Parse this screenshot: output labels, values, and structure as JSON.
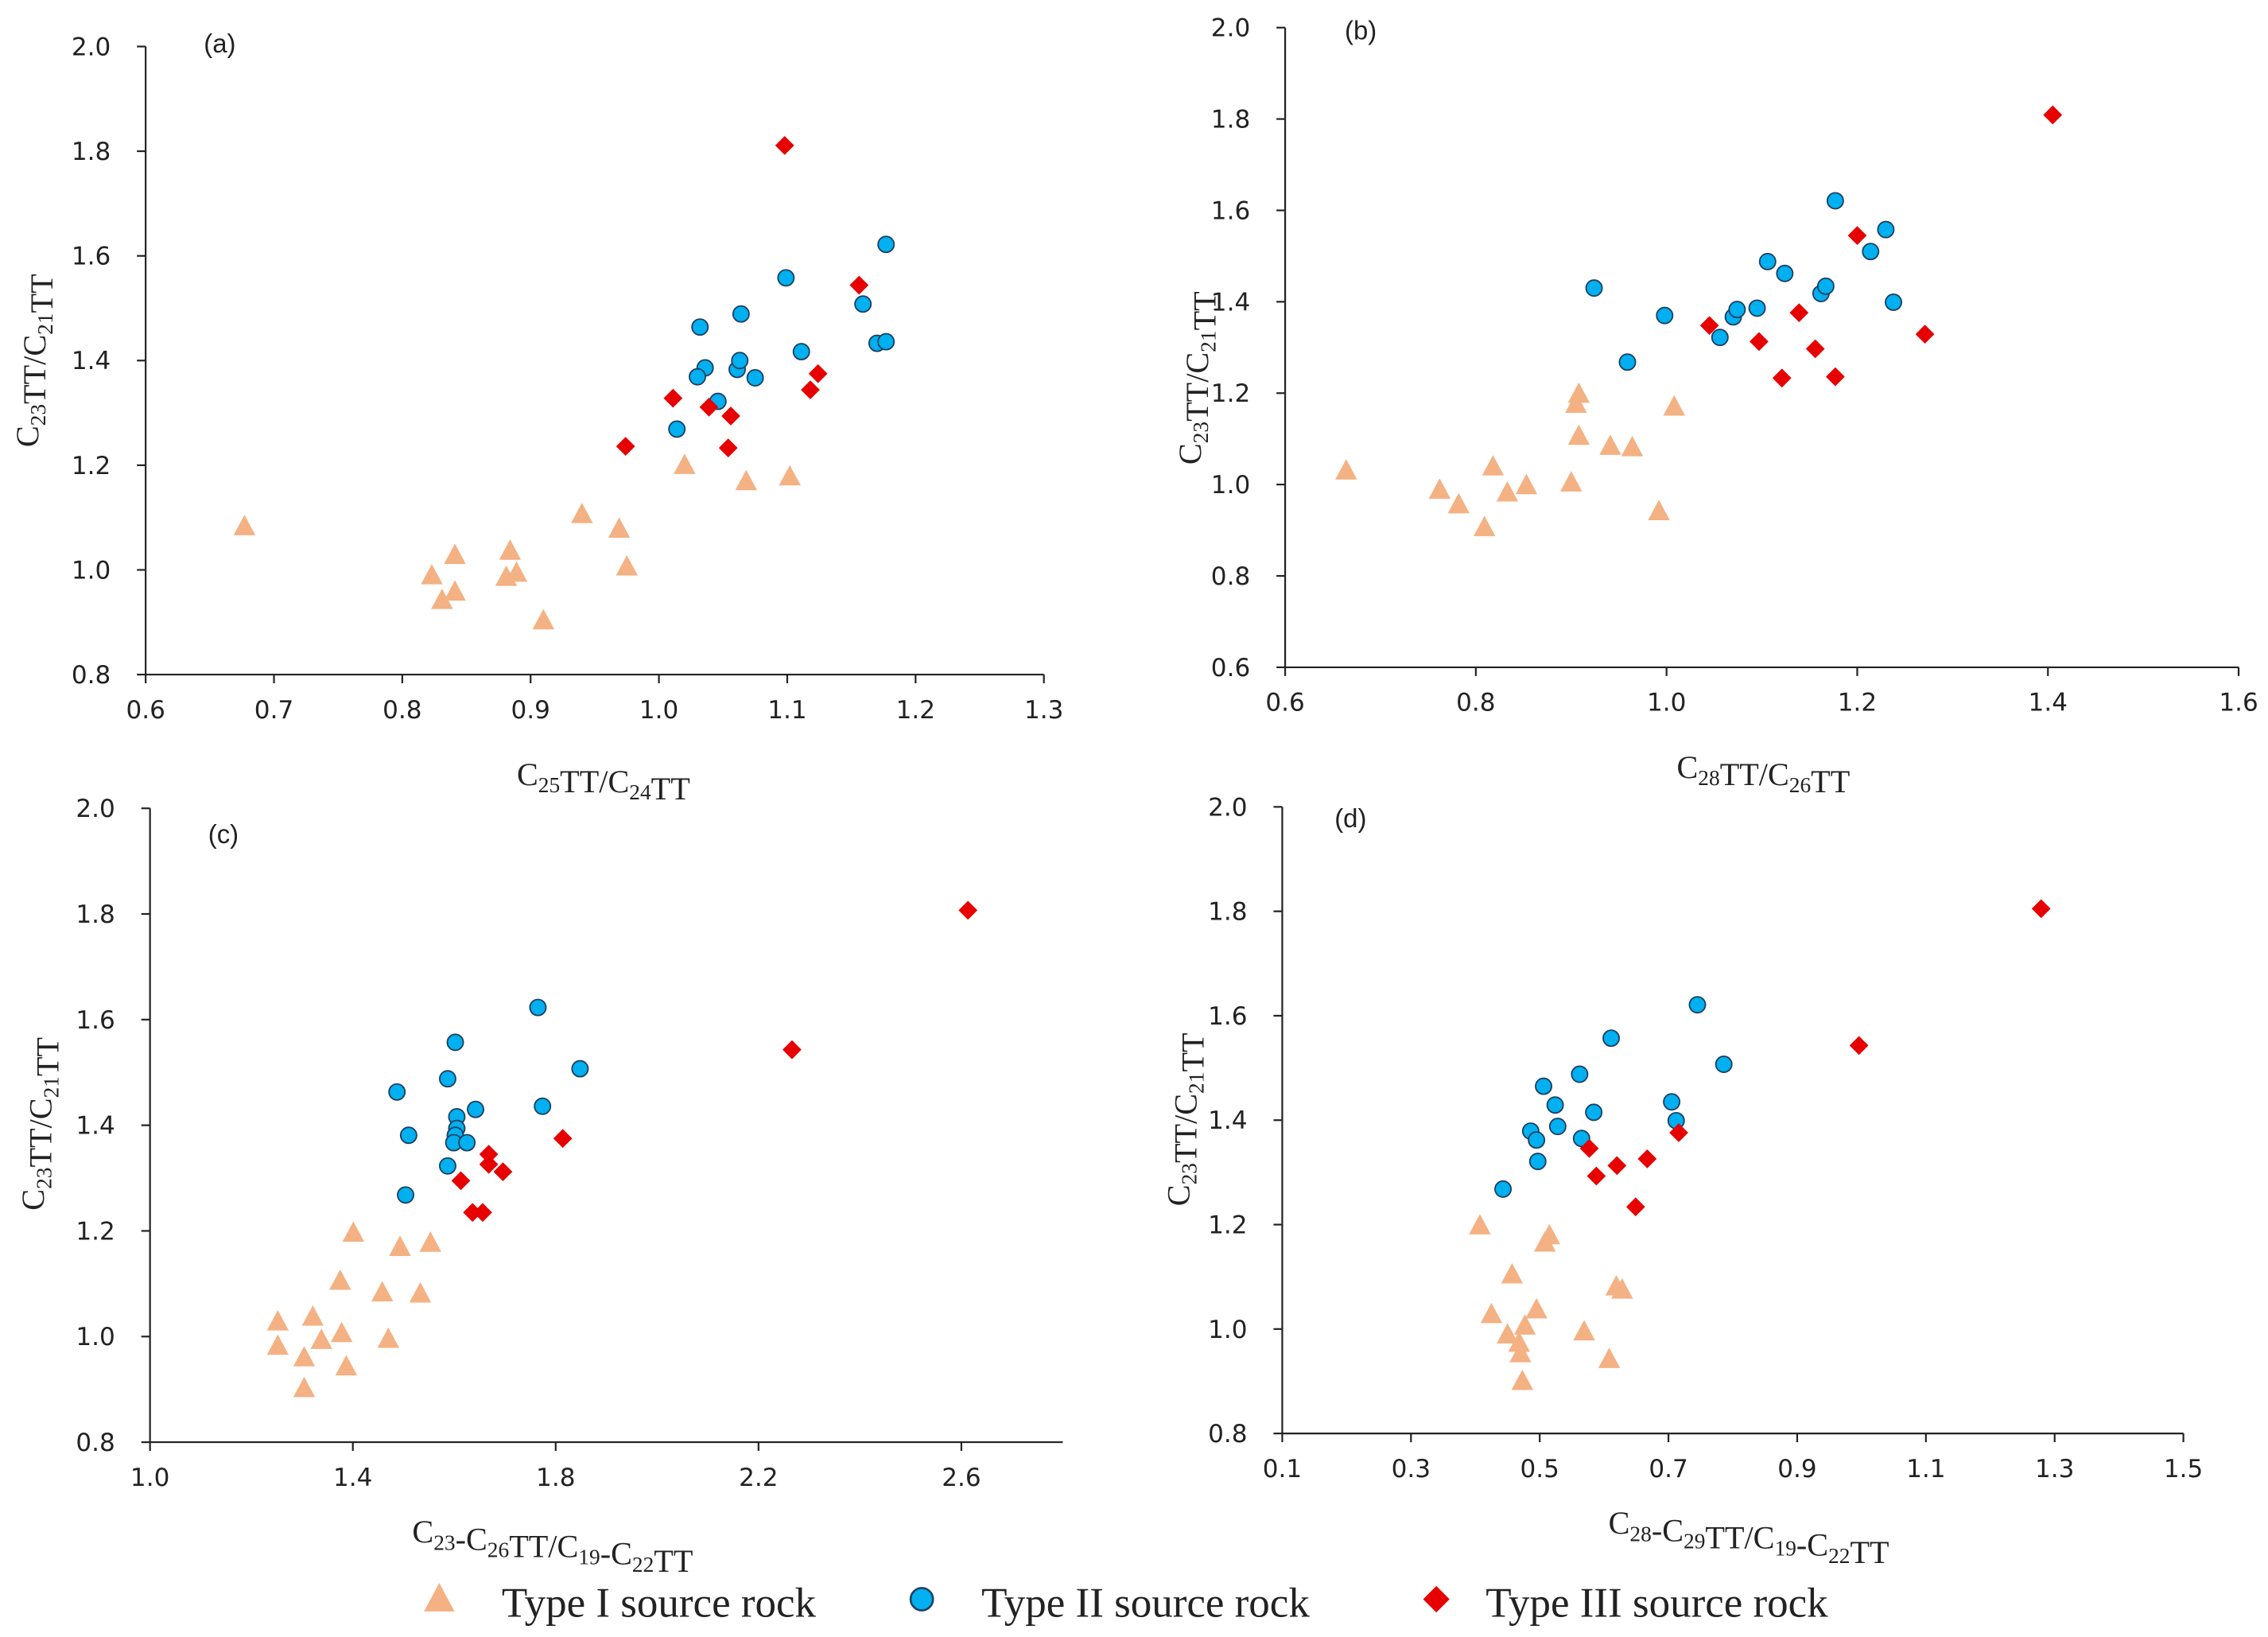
{
  "colors": {
    "type1": "#F4B183",
    "type2": "#00B0F0",
    "type2_stroke": "#1F3F5F",
    "type3": "#E60000",
    "axis": "#222222"
  },
  "legend": [
    {
      "label": "Type I source rock",
      "marker": "triangle",
      "series": 0
    },
    {
      "label": "Type II source rock",
      "marker": "circle",
      "series": 1
    },
    {
      "label": "Type III source rock",
      "marker": "diamond",
      "series": 2
    }
  ],
  "chart_data": [
    {
      "type": "scatter",
      "panel_label": "(a)",
      "xlabel": [
        {
          "t": "C"
        },
        {
          "s": "25"
        },
        {
          "t": "TT/C"
        },
        {
          "s": "24"
        },
        {
          "t": "TT"
        }
      ],
      "ylabel": [
        {
          "t": "C"
        },
        {
          "s": "23"
        },
        {
          "t": "TT/C"
        },
        {
          "s": "21"
        },
        {
          "t": "TT"
        }
      ],
      "xlim": [
        0.6,
        1.3
      ],
      "ylim": [
        0.8,
        2.0
      ],
      "xticks": [
        "0.6",
        "0.7",
        "0.8",
        "0.9",
        "1.0",
        "1.1",
        "1.2",
        "1.3"
      ],
      "yticks": [
        "0.8",
        "1.0",
        "1.2",
        "1.4",
        "1.6",
        "1.8",
        "2.0"
      ],
      "series": [
        {
          "name": "Type I source rock",
          "points": [
            [
              0.677,
              1.083
            ],
            [
              0.823,
              0.989
            ],
            [
              0.831,
              0.942
            ],
            [
              0.841,
              1.028
            ],
            [
              0.841,
              0.958
            ],
            [
              0.881,
              0.986
            ],
            [
              0.884,
              1.036
            ],
            [
              0.889,
              0.994
            ],
            [
              0.91,
              0.903
            ],
            [
              0.94,
              1.106
            ],
            [
              0.969,
              1.078
            ],
            [
              0.975,
              1.006
            ],
            [
              1.02,
              1.2
            ],
            [
              1.068,
              1.169
            ],
            [
              1.102,
              1.178
            ]
          ]
        },
        {
          "name": "Type II source rock",
          "points": [
            [
              1.014,
              1.269
            ],
            [
              1.032,
              1.464
            ],
            [
              1.036,
              1.386
            ],
            [
              1.03,
              1.369
            ],
            [
              1.046,
              1.322
            ],
            [
              1.061,
              1.383
            ],
            [
              1.063,
              1.4
            ],
            [
              1.064,
              1.489
            ],
            [
              1.075,
              1.367
            ],
            [
              1.099,
              1.558
            ],
            [
              1.111,
              1.417
            ],
            [
              1.159,
              1.508
            ],
            [
              1.17,
              1.433
            ],
            [
              1.177,
              1.436
            ],
            [
              1.177,
              1.622
            ]
          ]
        },
        {
          "name": "Type III source rock",
          "points": [
            [
              0.974,
              1.236
            ],
            [
              1.011,
              1.328
            ],
            [
              1.039,
              1.311
            ],
            [
              1.056,
              1.294
            ],
            [
              1.054,
              1.233
            ],
            [
              1.098,
              1.811
            ],
            [
              1.118,
              1.344
            ],
            [
              1.124,
              1.375
            ],
            [
              1.156,
              1.544
            ]
          ]
        }
      ]
    },
    {
      "type": "scatter",
      "panel_label": "(b)",
      "xlabel": [
        {
          "t": "C"
        },
        {
          "s": "28"
        },
        {
          "t": "TT/C"
        },
        {
          "s": "26"
        },
        {
          "t": "TT"
        }
      ],
      "ylabel": [
        {
          "t": "C"
        },
        {
          "s": "23"
        },
        {
          "t": "TT/C"
        },
        {
          "s": "21"
        },
        {
          "t": "TT"
        }
      ],
      "xlim": [
        0.6,
        1.6
      ],
      "ylim": [
        0.6,
        2.0
      ],
      "xticks": [
        "0.6",
        "0.8",
        "1.0",
        "1.2",
        "1.4",
        "1.6"
      ],
      "yticks": [
        "0.6",
        "0.8",
        "1.0",
        "1.2",
        "1.4",
        "1.6",
        "1.8",
        "2.0"
      ],
      "series": [
        {
          "name": "Type I source rock",
          "points": [
            [
              0.664,
              1.03
            ],
            [
              0.762,
              0.988
            ],
            [
              0.782,
              0.956
            ],
            [
              0.809,
              0.906
            ],
            [
              0.818,
              1.039
            ],
            [
              0.833,
              0.982
            ],
            [
              0.853,
              0.998
            ],
            [
              0.9,
              1.004
            ],
            [
              0.905,
              1.176
            ],
            [
              0.908,
              1.198
            ],
            [
              0.908,
              1.106
            ],
            [
              0.941,
              1.084
            ],
            [
              0.964,
              1.081
            ],
            [
              0.992,
              0.941
            ],
            [
              1.008,
              1.17
            ]
          ]
        },
        {
          "name": "Type II source rock",
          "points": [
            [
              0.924,
              1.43
            ],
            [
              0.959,
              1.268
            ],
            [
              0.998,
              1.37
            ],
            [
              1.056,
              1.322
            ],
            [
              1.07,
              1.367
            ],
            [
              1.074,
              1.383
            ],
            [
              1.095,
              1.386
            ],
            [
              1.106,
              1.488
            ],
            [
              1.124,
              1.462
            ],
            [
              1.162,
              1.418
            ],
            [
              1.167,
              1.434
            ],
            [
              1.177,
              1.621
            ],
            [
              1.214,
              1.51
            ],
            [
              1.23,
              1.558
            ],
            [
              1.238,
              1.399
            ]
          ]
        },
        {
          "name": "Type III source rock",
          "points": [
            [
              1.045,
              1.348
            ],
            [
              1.097,
              1.313
            ],
            [
              1.121,
              1.233
            ],
            [
              1.139,
              1.376
            ],
            [
              1.156,
              1.297
            ],
            [
              1.177,
              1.236
            ],
            [
              1.2,
              1.545
            ],
            [
              1.271,
              1.329
            ],
            [
              1.405,
              1.809
            ]
          ]
        }
      ]
    },
    {
      "type": "scatter",
      "panel_label": "(c)",
      "xlabel": [
        {
          "t": "C"
        },
        {
          "s": "23"
        },
        {
          "t": "-C"
        },
        {
          "s": "26"
        },
        {
          "t": "TT/C"
        },
        {
          "s": "19"
        },
        {
          "t": "-C"
        },
        {
          "s": "22"
        },
        {
          "t": "TT"
        }
      ],
      "ylabel": [
        {
          "t": "C"
        },
        {
          "s": "23"
        },
        {
          "t": "TT/C"
        },
        {
          "s": "21"
        },
        {
          "t": "TT"
        }
      ],
      "xlim": [
        1.0,
        2.8
      ],
      "ylim": [
        0.8,
        2.0
      ],
      "xticks": [
        "1.0",
        "1.4",
        "1.8",
        "2.2",
        "2.6"
      ],
      "yticks": [
        "0.8",
        "1.0",
        "1.2",
        "1.4",
        "1.6",
        "1.8",
        "2.0"
      ],
      "series": [
        {
          "name": "Type I source rock",
          "points": [
            [
              1.252,
              1.028
            ],
            [
              1.252,
              0.982
            ],
            [
              1.304,
              0.96
            ],
            [
              1.304,
              0.902
            ],
            [
              1.321,
              1.037
            ],
            [
              1.338,
              0.993
            ],
            [
              1.378,
              1.006
            ],
            [
              1.387,
              0.943
            ],
            [
              1.375,
              1.105
            ],
            [
              1.401,
              1.196
            ],
            [
              1.458,
              1.083
            ],
            [
              1.47,
              0.995
            ],
            [
              1.493,
              1.169
            ],
            [
              1.533,
              1.081
            ],
            [
              1.553,
              1.177
            ]
          ]
        },
        {
          "name": "Type II source rock",
          "points": [
            [
              1.487,
              1.463
            ],
            [
              1.51,
              1.381
            ],
            [
              1.504,
              1.268
            ],
            [
              1.587,
              1.488
            ],
            [
              1.587,
              1.323
            ],
            [
              1.602,
              1.557
            ],
            [
              1.605,
              1.416
            ],
            [
              1.605,
              1.394
            ],
            [
              1.602,
              1.381
            ],
            [
              1.599,
              1.367
            ],
            [
              1.625,
              1.367
            ],
            [
              1.642,
              1.43
            ],
            [
              1.765,
              1.623
            ],
            [
              1.774,
              1.436
            ],
            [
              1.848,
              1.507
            ]
          ]
        },
        {
          "name": "Type III source rock",
          "points": [
            [
              1.613,
              1.295
            ],
            [
              1.636,
              1.235
            ],
            [
              1.656,
              1.235
            ],
            [
              1.668,
              1.345
            ],
            [
              1.668,
              1.326
            ],
            [
              1.696,
              1.312
            ],
            [
              1.814,
              1.375
            ],
            [
              2.266,
              1.543
            ],
            [
              2.613,
              1.807
            ]
          ]
        }
      ]
    },
    {
      "type": "scatter",
      "panel_label": "(d)",
      "xlabel": [
        {
          "t": "C"
        },
        {
          "s": "28"
        },
        {
          "t": "-C"
        },
        {
          "s": "29"
        },
        {
          "t": "TT/C"
        },
        {
          "s": "19"
        },
        {
          "t": "-C"
        },
        {
          "s": "22"
        },
        {
          "t": "TT"
        }
      ],
      "ylabel": [
        {
          "t": "C"
        },
        {
          "s": "23"
        },
        {
          "t": "TT/C"
        },
        {
          "s": "21"
        },
        {
          "t": "TT"
        }
      ],
      "xlim": [
        0.1,
        1.5
      ],
      "ylim": [
        0.8,
        2.0
      ],
      "xticks": [
        "0.1",
        "0.3",
        "0.5",
        "0.7",
        "0.9",
        "1.1",
        "1.3",
        "1.5"
      ],
      "yticks": [
        "0.8",
        "1.0",
        "1.2",
        "1.4",
        "1.6",
        "1.8",
        "2.0"
      ],
      "series": [
        {
          "name": "Type I source rock",
          "points": [
            [
              0.407,
              1.198
            ],
            [
              0.425,
              1.028
            ],
            [
              0.45,
              0.989
            ],
            [
              0.457,
              1.104
            ],
            [
              0.468,
              0.973
            ],
            [
              0.47,
              0.953
            ],
            [
              0.473,
              0.9
            ],
            [
              0.477,
              1.006
            ],
            [
              0.495,
              1.037
            ],
            [
              0.508,
              1.165
            ],
            [
              0.515,
              1.179
            ],
            [
              0.569,
              0.995
            ],
            [
              0.608,
              0.942
            ],
            [
              0.619,
              1.081
            ],
            [
              0.628,
              1.075
            ]
          ]
        },
        {
          "name": "Type II source rock",
          "points": [
            [
              0.443,
              1.268
            ],
            [
              0.486,
              1.379
            ],
            [
              0.495,
              1.362
            ],
            [
              0.497,
              1.321
            ],
            [
              0.506,
              1.465
            ],
            [
              0.524,
              1.429
            ],
            [
              0.528,
              1.388
            ],
            [
              0.562,
              1.488
            ],
            [
              0.565,
              1.365
            ],
            [
              0.584,
              1.415
            ],
            [
              0.611,
              1.557
            ],
            [
              0.705,
              1.435
            ],
            [
              0.712,
              1.399
            ],
            [
              0.745,
              1.621
            ],
            [
              0.786,
              1.507
            ]
          ]
        },
        {
          "name": "Type III source rock",
          "points": [
            [
              0.577,
              1.346
            ],
            [
              0.588,
              1.293
            ],
            [
              0.62,
              1.313
            ],
            [
              0.667,
              1.326
            ],
            [
              0.649,
              1.234
            ],
            [
              0.716,
              1.376
            ],
            [
              0.996,
              1.543
            ],
            [
              1.279,
              1.805
            ]
          ]
        }
      ]
    }
  ]
}
